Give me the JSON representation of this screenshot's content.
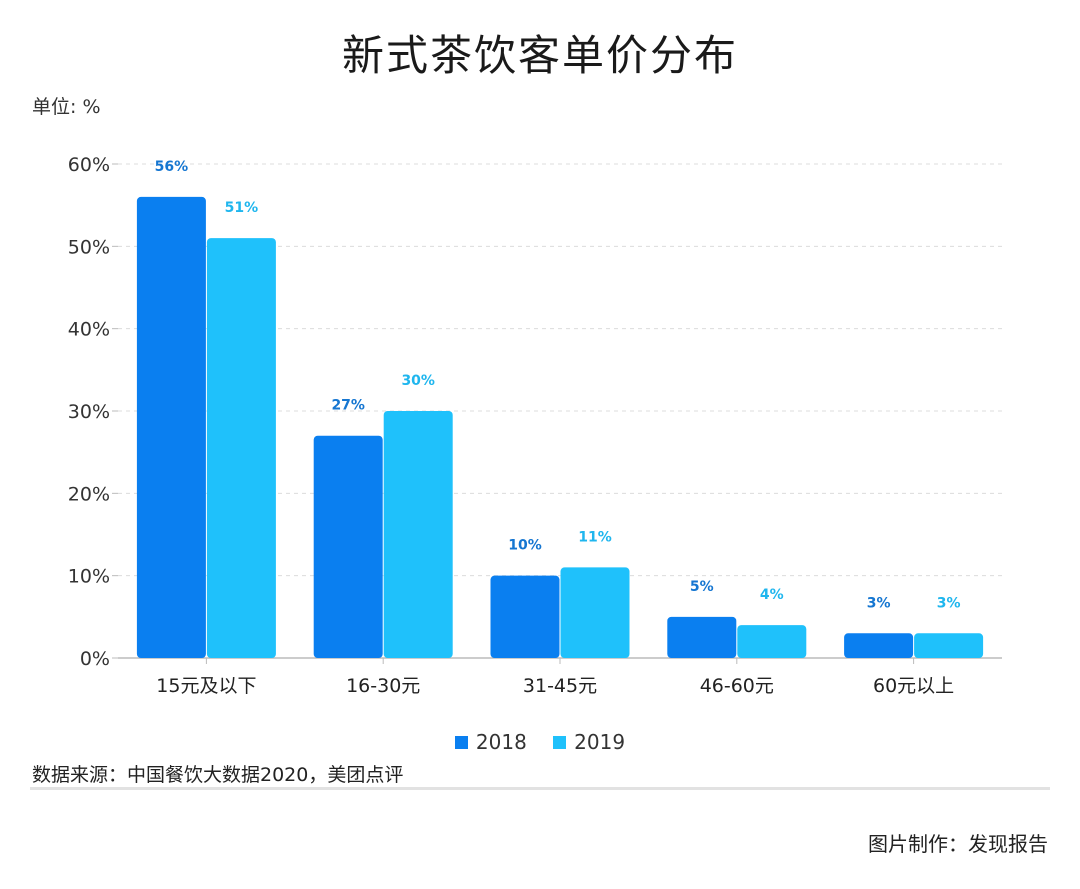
{
  "header": {
    "title": "新式茶饮客单价分布",
    "unit": "单位: %"
  },
  "chart_data": {
    "type": "bar",
    "categories": [
      "15元及以下",
      "16-30元",
      "31-45元",
      "46-60元",
      "60元以上"
    ],
    "series": [
      {
        "name": "2018",
        "values": [
          56,
          27,
          10,
          5,
          3
        ],
        "color": "#0a7ff0",
        "labels": [
          "56%",
          "27%",
          "10%",
          "5%",
          "3%"
        ]
      },
      {
        "name": "2019",
        "values": [
          51,
          30,
          11,
          4,
          3
        ],
        "color": "#1fc1fb",
        "labels": [
          "51%",
          "30%",
          "11%",
          "4%",
          "3%"
        ]
      }
    ],
    "ylim": [
      0,
      60
    ],
    "yticks": [
      0,
      10,
      20,
      30,
      40,
      50,
      60
    ],
    "ytick_labels": [
      "0%",
      "10%",
      "20%",
      "30%",
      "40%",
      "50%",
      "60%"
    ],
    "grid": true,
    "legend_position": "bottom"
  },
  "footer": {
    "source": "数据来源：中国餐饮大数据2020，美团点评",
    "credit": "图片制作：发现报告"
  }
}
